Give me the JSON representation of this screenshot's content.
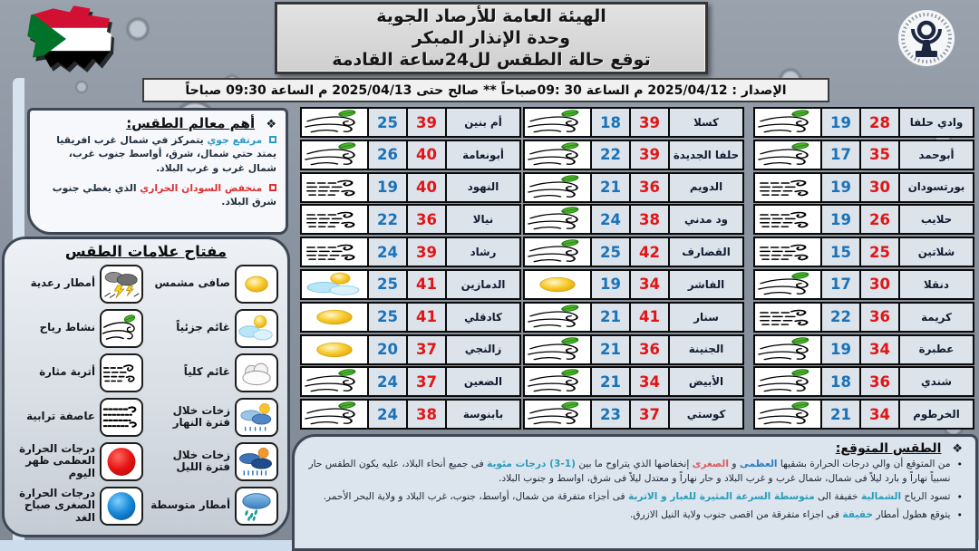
{
  "header": {
    "title_lines": [
      "الهيئة العامة للأرصاد الجوية",
      "وحدة الإنذار المبكر",
      "توقع حالة الطقس لل24ساعة القادمة"
    ],
    "issue_line": "الإصدار : 2025/04/12 م الساعة 30 :09صباحاً ** صالح حتى 2025/04/13 م الساعة 09:30 صباحاً"
  },
  "features_panel": {
    "bullet_icon": "❖",
    "title": "أهم معالم الطقس:",
    "items": [
      {
        "marker_color": "#2e9bc6",
        "segments": [
          {
            "text": "مرتفع جوي ",
            "color": "#2e9bc6"
          },
          {
            "text": "يتمركز في شمال غرب افريقيا يمتد حتي شمال، شرق، أواسط جنوب غرب، شمال غرب و غرب البلاد."
          }
        ]
      },
      {
        "marker_color": "#e03030",
        "segments": [
          {
            "text": "منخفض السودان الحراري ",
            "color": "#e03030"
          },
          {
            "text": "الذي يغطي جنوب شرق البلاد."
          }
        ]
      }
    ]
  },
  "legend": {
    "title": "مفتاح علامات الطقس",
    "items": [
      {
        "label": "صافى مشمس",
        "icon": "sun"
      },
      {
        "label": "أمطار رعدية",
        "icon": "thunderstorm"
      },
      {
        "label": "غائم جزئياً",
        "icon": "partly-cloudy"
      },
      {
        "label": "نشاط رياح",
        "icon": "wind-leaf"
      },
      {
        "label": "غائم كلياً",
        "icon": "cloudy"
      },
      {
        "label": "أتربة مثارة",
        "icon": "dust"
      },
      {
        "label": "زخات خلال فترة النهار",
        "icon": "day-showers"
      },
      {
        "label": "عاصفة ترابية",
        "icon": "dust-storm"
      },
      {
        "label": "زخات خلال فترة الليل",
        "icon": "night-showers"
      },
      {
        "label": "درجات الحرارة العظمى ظهر اليوم",
        "icon": "max-temp"
      },
      {
        "label": "أمطار متوسطة",
        "icon": "rain-moderate"
      },
      {
        "label": "درجات الحرارة الصغرى صباح الغد",
        "icon": "min-temp"
      }
    ]
  },
  "temp_colors": {
    "max": "#e01616",
    "min": "#1a72b8"
  },
  "forecast_tables": [
    {
      "rows": [
        {
          "city": "أم بنين",
          "max": "39",
          "min": "25",
          "icon": "wind-leaf"
        },
        {
          "city": "أبونعامة",
          "max": "40",
          "min": "26",
          "icon": "wind-leaf"
        },
        {
          "city": "النهود",
          "max": "40",
          "min": "19",
          "icon": "dust"
        },
        {
          "city": "نيالا",
          "max": "36",
          "min": "22",
          "icon": "dust"
        },
        {
          "city": "رشاد",
          "max": "39",
          "min": "24",
          "icon": "dust"
        },
        {
          "city": "الدمازين",
          "max": "41",
          "min": "25",
          "icon": "partly-cloudy"
        },
        {
          "city": "كادقلي",
          "max": "41",
          "min": "25",
          "icon": "sun"
        },
        {
          "city": "زالنجي",
          "max": "37",
          "min": "20",
          "icon": "sun"
        },
        {
          "city": "الضعين",
          "max": "37",
          "min": "24",
          "icon": "wind-leaf"
        },
        {
          "city": "بابنوسة",
          "max": "38",
          "min": "24",
          "icon": "wind-leaf"
        }
      ]
    },
    {
      "rows": [
        {
          "city": "كسلا",
          "max": "39",
          "min": "18",
          "icon": "wind-leaf"
        },
        {
          "city": "حلفا الجديدة",
          "max": "39",
          "min": "22",
          "icon": "wind-leaf"
        },
        {
          "city": "الدويم",
          "max": "36",
          "min": "21",
          "icon": "wind-leaf"
        },
        {
          "city": "ود مدني",
          "max": "38",
          "min": "24",
          "icon": "wind-leaf"
        },
        {
          "city": "القضارف",
          "max": "42",
          "min": "25",
          "icon": "wind-leaf"
        },
        {
          "city": "الفاشر",
          "max": "34",
          "min": "19",
          "icon": "sun"
        },
        {
          "city": "سنار",
          "max": "41",
          "min": "21",
          "icon": "wind-leaf"
        },
        {
          "city": "الجنينة",
          "max": "36",
          "min": "21",
          "icon": "wind-leaf"
        },
        {
          "city": "الأبيض",
          "max": "34",
          "min": "21",
          "icon": "wind-leaf"
        },
        {
          "city": "كوستي",
          "max": "37",
          "min": "23",
          "icon": "wind-leaf"
        }
      ]
    },
    {
      "rows": [
        {
          "city": "وادي حلفا",
          "max": "28",
          "min": "19",
          "icon": "wind-leaf"
        },
        {
          "city": "أبوحمد",
          "max": "35",
          "min": "17",
          "icon": "wind-leaf"
        },
        {
          "city": "بورتسودان",
          "max": "30",
          "min": "19",
          "icon": "dust"
        },
        {
          "city": "حلايب",
          "max": "26",
          "min": "19",
          "icon": "dust"
        },
        {
          "city": "شلاتين",
          "max": "25",
          "min": "15",
          "icon": "dust"
        },
        {
          "city": "دنقلا",
          "max": "30",
          "min": "17",
          "icon": "wind-leaf"
        },
        {
          "city": "كريمة",
          "max": "36",
          "min": "22",
          "icon": "dust"
        },
        {
          "city": "عطبرة",
          "max": "34",
          "min": "19",
          "icon": "wind-leaf"
        },
        {
          "city": "شندي",
          "max": "36",
          "min": "18",
          "icon": "wind-leaf"
        },
        {
          "city": "الخرطوم",
          "max": "34",
          "min": "21",
          "icon": "wind-leaf"
        }
      ]
    }
  ],
  "expected_panel": {
    "bullet_icon": "❖",
    "title": "الطقس المتوقع:",
    "bullets": [
      {
        "marker": "•",
        "segments": [
          {
            "text": "من المتوقع أن والي درجات الحرارة بشقيها "
          },
          {
            "text": "العظمى",
            "color": "#2d7fc1"
          },
          {
            "text": " و "
          },
          {
            "text": "الصغرى",
            "color": "#e05a5a"
          },
          {
            "text": " إنخفاضها الذي يتراوح ما بين "
          },
          {
            "text": "(1-3) درجات مئوية",
            "color": "#2a9db8"
          },
          {
            "text": " فى جميع أنحاء البلاد، عليه يكون الطقس حار نسبياً نهاراً و بارد ليلاً فى شمال، شمال غرب و غرب البلاد و حار نهاراً و معتدل ليلاً فى شرق، اواسط و جنوب البلاد."
          }
        ]
      },
      {
        "marker": "•",
        "segments": [
          {
            "text": "تسود الرياح "
          },
          {
            "text": "الشمالية",
            "color": "#2a9db8"
          },
          {
            "text": " خفيفة الى "
          },
          {
            "text": "متوسطة السرعة المثيرة للغبار و الاتربة",
            "color": "#2a9db8"
          },
          {
            "text": " فى أجزاء متفرقة من شمال، أواسط، جنوب، غرب البلاد و ولاية البحر الأحمر."
          }
        ]
      },
      {
        "marker": "•",
        "segments": [
          {
            "text": "يتوقع هطول أمطار "
          },
          {
            "text": "خفيفة",
            "color": "#2a9db8"
          },
          {
            "text": " فى اجزاء متفرقة من اقصى جنوب ولاية النيل الازرق."
          }
        ]
      }
    ]
  }
}
